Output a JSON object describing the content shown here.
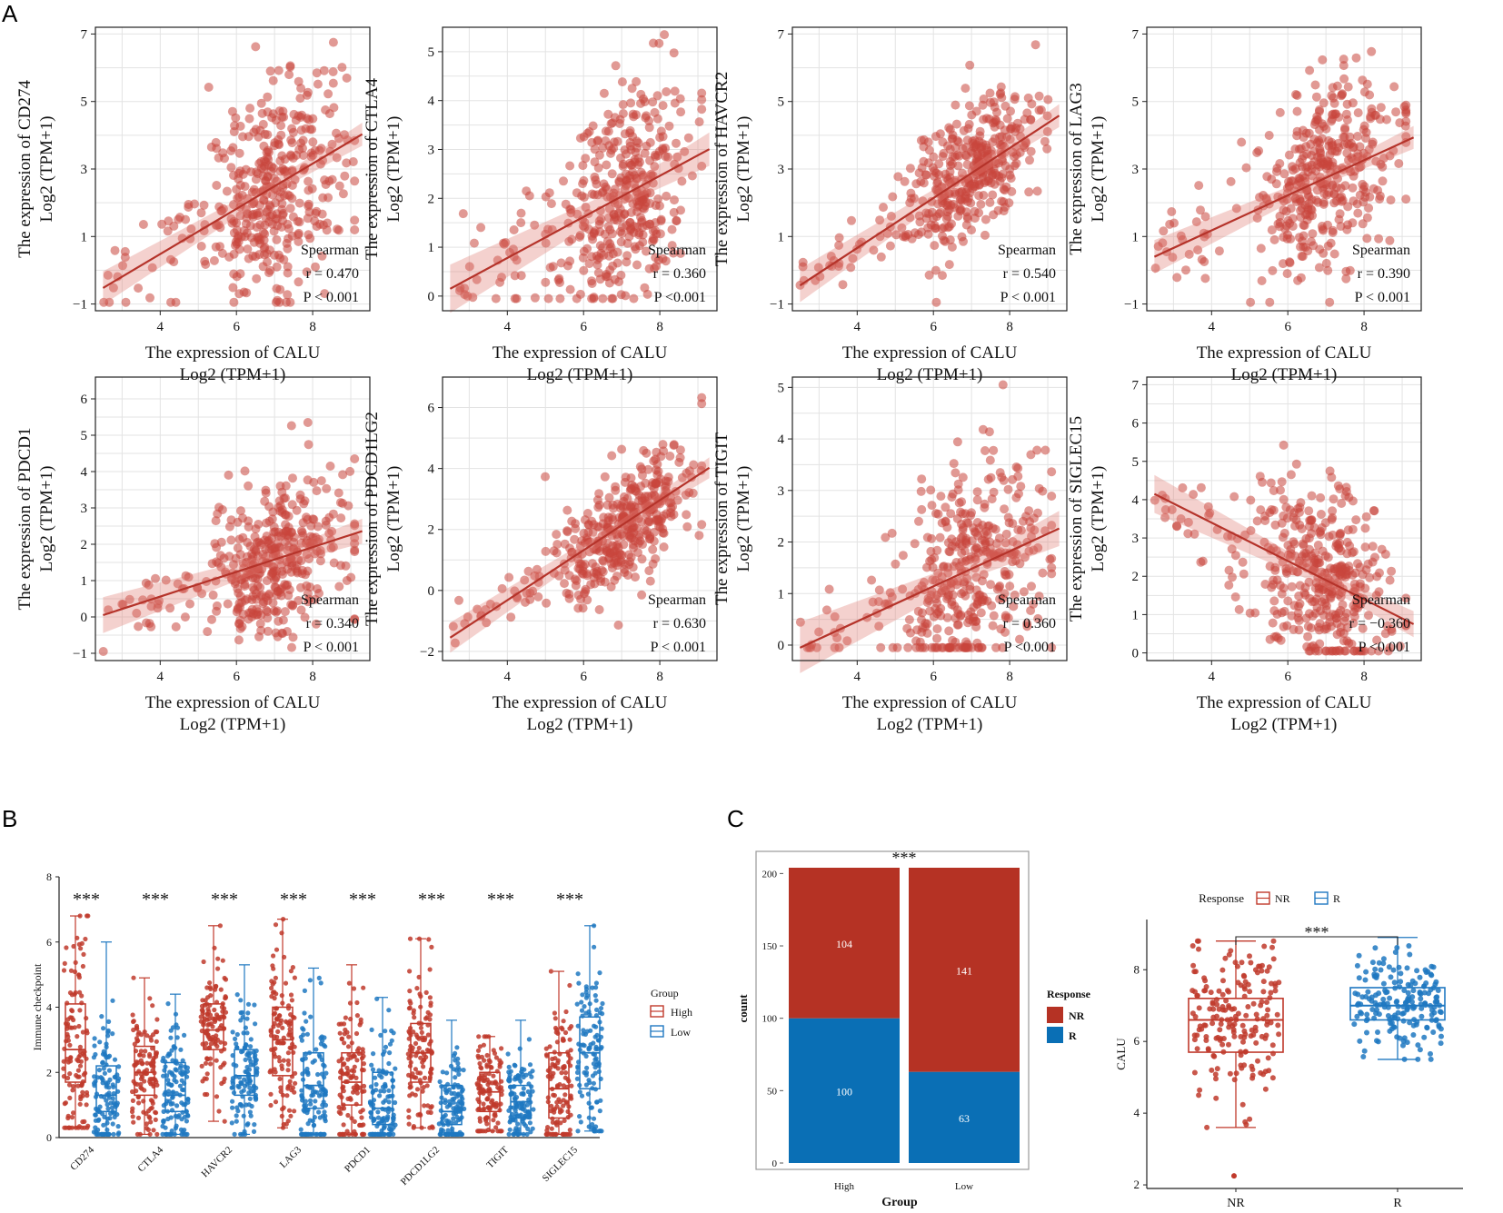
{
  "panels": {
    "A": "A",
    "B": "B",
    "C": "C"
  },
  "chart_data": [
    {
      "type": "scatter",
      "id": "CD274",
      "ylabel_line1": "The expression of CD274",
      "ylabel_line2": "Log2 (TPM+1)",
      "xlabel_line1": "The expression of CALU",
      "xlabel_line2": "Log2 (TPM+1)",
      "xlim": [
        2.3,
        9.5
      ],
      "xticks": [
        4,
        6,
        8
      ],
      "ylim": [
        -1.2,
        7.2
      ],
      "yticks": [
        -1,
        1,
        3,
        5,
        7
      ],
      "fit": {
        "slope": 0.67,
        "intercept": -2.2
      },
      "cloud": {
        "xc": 7.0,
        "xs": 0.9,
        "resid": 1.5
      },
      "stat_title": "Spearman",
      "stat_r": "r = 0.470",
      "stat_p": "P < 0.001"
    },
    {
      "type": "scatter",
      "id": "CTLA4",
      "ylabel_line1": "The expression of CTLA4",
      "ylabel_line2": "Log2 (TPM+1)",
      "xlabel_line1": "The expression of CALU",
      "xlabel_line2": "Log2 (TPM+1)",
      "xlim": [
        2.3,
        9.5
      ],
      "xticks": [
        4,
        6,
        8
      ],
      "ylim": [
        -0.3,
        5.5
      ],
      "yticks": [
        0,
        1,
        2,
        3,
        4,
        5
      ],
      "fit": {
        "slope": 0.42,
        "intercept": -0.9
      },
      "cloud": {
        "xc": 7.0,
        "xs": 0.9,
        "resid": 1.1
      },
      "stat_title": "Spearman",
      "stat_r": "r = 0.360",
      "stat_p": "P <0.001"
    },
    {
      "type": "scatter",
      "id": "HAVCR2",
      "ylabel_line1": "The expression of HAVCR2",
      "ylabel_line2": "Log2 (TPM+1)",
      "xlabel_line1": "The expression of CALU",
      "xlabel_line2": "Log2 (TPM+1)",
      "xlim": [
        2.3,
        9.5
      ],
      "xticks": [
        4,
        6,
        8
      ],
      "ylim": [
        -1.2,
        7.2
      ],
      "yticks": [
        -1,
        1,
        3,
        5,
        7
      ],
      "fit": {
        "slope": 0.74,
        "intercept": -2.3
      },
      "cloud": {
        "xc": 7.0,
        "xs": 0.9,
        "resid": 1.0
      },
      "stat_title": "Spearman",
      "stat_r": "r = 0.540",
      "stat_p": "P < 0.001"
    },
    {
      "type": "scatter",
      "id": "LAG3",
      "ylabel_line1": "The expression of LAG3",
      "ylabel_line2": "Log2 (TPM+1)",
      "xlabel_line1": "The expression of CALU",
      "xlabel_line2": "Log2 (TPM+1)",
      "xlim": [
        2.3,
        9.5
      ],
      "xticks": [
        4,
        6,
        8
      ],
      "ylim": [
        -1.2,
        7.2
      ],
      "yticks": [
        -1,
        1,
        3,
        5,
        7
      ],
      "fit": {
        "slope": 0.52,
        "intercept": -0.9
      },
      "cloud": {
        "xc": 7.0,
        "xs": 0.9,
        "resid": 1.4
      },
      "stat_title": "Spearman",
      "stat_r": "r = 0.390",
      "stat_p": "P < 0.001"
    },
    {
      "type": "scatter",
      "id": "PDCD1",
      "ylabel_line1": "The expression of PDCD1",
      "ylabel_line2": "Log2 (TPM+1)",
      "xlabel_line1": "The expression of CALU",
      "xlabel_line2": "Log2 (TPM+1)",
      "xlim": [
        2.3,
        9.5
      ],
      "xticks": [
        4,
        6,
        8
      ],
      "ylim": [
        -1.2,
        6.6
      ],
      "yticks": [
        -1,
        0,
        1,
        2,
        3,
        4,
        5,
        6
      ],
      "fit": {
        "slope": 0.34,
        "intercept": -0.8
      },
      "cloud": {
        "xc": 7.0,
        "xs": 0.9,
        "resid": 1.1
      },
      "stat_title": "Spearman",
      "stat_r": "r = 0.340",
      "stat_p": "P < 0.001"
    },
    {
      "type": "scatter",
      "id": "PDCD1LG2",
      "ylabel_line1": "The expression of PDCD1LG2",
      "ylabel_line2": "Log2 (TPM+1)",
      "xlabel_line1": "The expression of CALU",
      "xlabel_line2": "Log2 (TPM+1)",
      "xlim": [
        2.3,
        9.5
      ],
      "xticks": [
        4,
        6,
        8
      ],
      "ylim": [
        -2.3,
        7.0
      ],
      "yticks": [
        -2,
        0,
        2,
        4,
        6
      ],
      "fit": {
        "slope": 0.82,
        "intercept": -3.6
      },
      "cloud": {
        "xc": 7.0,
        "xs": 0.9,
        "resid": 0.9
      },
      "stat_title": "Spearman",
      "stat_r": "r = 0.630",
      "stat_p": "P < 0.001"
    },
    {
      "type": "scatter",
      "id": "TIGIT",
      "ylabel_line1": "The expression of TIGIT",
      "ylabel_line2": "Log2 (TPM+1)",
      "xlabel_line1": "The expression of CALU",
      "xlabel_line2": "Log2 (TPM+1)",
      "xlim": [
        2.3,
        9.5
      ],
      "xticks": [
        4,
        6,
        8
      ],
      "ylim": [
        -0.3,
        5.2
      ],
      "yticks": [
        0,
        1,
        2,
        3,
        4,
        5
      ],
      "fit": {
        "slope": 0.34,
        "intercept": -0.9
      },
      "cloud": {
        "xc": 7.0,
        "xs": 0.9,
        "resid": 1.0
      },
      "stat_title": "Spearman",
      "stat_r": "r = 0.360",
      "stat_p": "P <0.001"
    },
    {
      "type": "scatter",
      "id": "SIGLEC15",
      "ylabel_line1": "The expression of SIGLEC15",
      "ylabel_line2": "Log2 (TPM+1)",
      "xlabel_line1": "The expression of CALU",
      "xlabel_line2": "Log2 (TPM+1)",
      "xlim": [
        2.3,
        9.5
      ],
      "xticks": [
        4,
        6,
        8
      ],
      "ylim": [
        -0.2,
        7.2
      ],
      "yticks": [
        0,
        1,
        2,
        3,
        4,
        5,
        6,
        7
      ],
      "fit": {
        "slope": -0.5,
        "intercept": 5.4
      },
      "cloud": {
        "xc": 6.9,
        "xs": 0.9,
        "resid": 1.2
      },
      "stat_title": "Spearman",
      "stat_r": "r = −0.360",
      "stat_p": "P <0.001"
    },
    {
      "type": "box",
      "id": "immune-box",
      "ylabel": "Immune checkpoint",
      "ylim": [
        0,
        8
      ],
      "yticks": [
        0,
        2,
        4,
        6,
        8
      ],
      "categories": [
        "CD274",
        "CTLA4",
        "HAVCR2",
        "LAG3",
        "PDCD1",
        "PDCD1LG2",
        "TIGIT",
        "SIGLEC15"
      ],
      "significance": "***",
      "series": [
        {
          "name": "High",
          "color": "#c0392b",
          "stats": [
            [
              0.3,
              1.7,
              2.7,
              4.1,
              6.8
            ],
            [
              0.1,
              1.3,
              2.0,
              2.8,
              4.9
            ],
            [
              0.5,
              2.7,
              3.3,
              4.1,
              6.5
            ],
            [
              0.3,
              1.9,
              3.0,
              4.0,
              6.7
            ],
            [
              0.1,
              1.0,
              1.7,
              2.6,
              5.3
            ],
            [
              0.3,
              1.7,
              2.6,
              3.5,
              6.1
            ],
            [
              0.2,
              0.8,
              1.4,
              2.0,
              3.1
            ],
            [
              0.1,
              0.6,
              1.5,
              2.6,
              5.1
            ]
          ]
        },
        {
          "name": "Low",
          "color": "#1f78c1",
          "stats": [
            [
              0.1,
              0.8,
              1.3,
              2.2,
              6.0
            ],
            [
              0.1,
              0.8,
              1.3,
              2.3,
              4.4
            ],
            [
              0.1,
              1.3,
              1.9,
              2.7,
              5.3
            ],
            [
              0.1,
              0.9,
              1.6,
              2.6,
              5.2
            ],
            [
              0.1,
              0.4,
              0.9,
              2.0,
              4.3
            ],
            [
              0.1,
              0.4,
              0.8,
              1.6,
              3.6
            ],
            [
              0.1,
              0.6,
              1.1,
              1.6,
              3.6
            ],
            [
              0.2,
              1.5,
              2.6,
              3.7,
              6.5
            ]
          ]
        }
      ],
      "legend_title": "Group"
    },
    {
      "type": "bar",
      "id": "response-bar",
      "stacked": true,
      "categories": [
        "High",
        "Low"
      ],
      "xlabel": "Group",
      "ylabel": "count",
      "ylim": [
        0,
        204
      ],
      "yticks": [
        0,
        50,
        100,
        150,
        200
      ],
      "significance": "***",
      "series": [
        {
          "name": "R",
          "color": "#0a6fb5",
          "values": [
            100,
            63
          ]
        },
        {
          "name": "NR",
          "color": "#b53224",
          "values": [
            104,
            141
          ]
        }
      ],
      "legend_title": "Response",
      "legend_items": [
        "NR",
        "R"
      ]
    },
    {
      "type": "box",
      "id": "calu-box",
      "categories": [
        "NR",
        "R"
      ],
      "ylabel": "CALU",
      "ylim": [
        1.9,
        9.4
      ],
      "yticks": [
        2,
        4,
        6,
        8
      ],
      "significance": "***",
      "legend_title": "Response",
      "legend_items": [
        "NR",
        "R"
      ],
      "series": [
        {
          "name": "NR",
          "color": "#c0392b",
          "stats": [
            3.6,
            5.7,
            6.6,
            7.2,
            8.8
          ]
        },
        {
          "name": "R",
          "color": "#1f78c1",
          "stats": [
            5.5,
            6.6,
            7.0,
            7.5,
            8.9
          ]
        }
      ]
    }
  ]
}
